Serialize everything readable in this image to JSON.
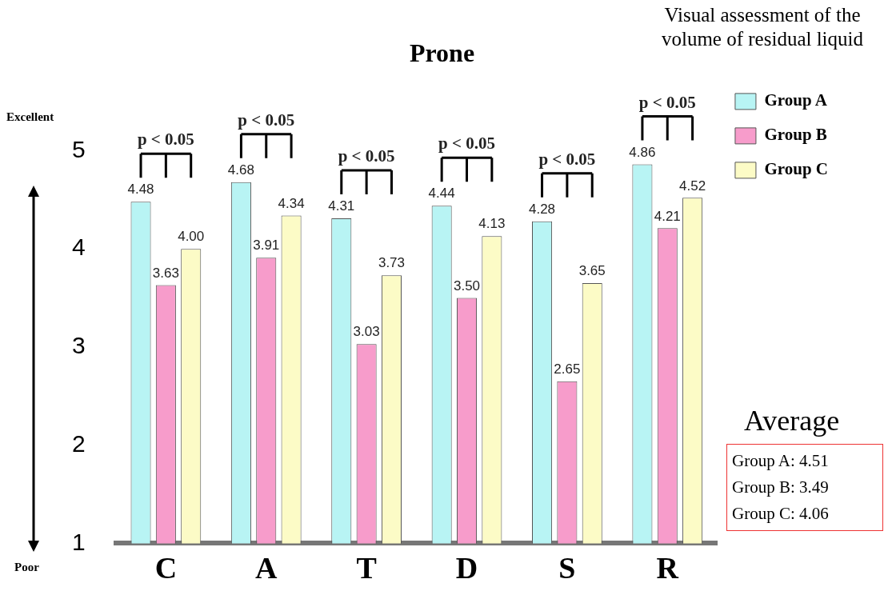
{
  "chart_data": {
    "type": "bar",
    "title": "Prone",
    "subtitle": "Visual assessment of the volume of residual liquid",
    "categories": [
      "C",
      "A",
      "T",
      "D",
      "S",
      "R"
    ],
    "series": [
      {
        "name": "Group A",
        "color": "#b8f4f4",
        "values": [
          4.48,
          4.68,
          4.31,
          4.44,
          4.28,
          4.86
        ],
        "value_labels": [
          "4.48",
          "4.68",
          "4.31",
          "4.44",
          "4.28",
          "4.86"
        ]
      },
      {
        "name": "Group B",
        "color": "#f79ccb",
        "values": [
          3.63,
          3.91,
          3.03,
          3.5,
          2.65,
          4.21
        ],
        "value_labels": [
          "3.63",
          "3.91",
          "3.03",
          "3.50",
          "2.65",
          "4.21"
        ]
      },
      {
        "name": "Group C",
        "color": "#fcfbc6",
        "values": [
          4.0,
          4.34,
          3.73,
          4.13,
          3.65,
          4.52
        ],
        "value_labels": [
          "4.00",
          "4.34",
          "3.73",
          "4.13",
          "3.65",
          "4.52"
        ]
      }
    ],
    "ylim": [
      1,
      5
    ],
    "yticks": [
      1,
      2,
      3,
      4,
      5
    ],
    "grid": false,
    "legend": "right",
    "annotations": [
      "Excellent",
      "Poor",
      "Average",
      "Group A: 4.51",
      "Group B: 3.49",
      "Group C: 4.06",
      {
        "text": "p < 0.05",
        "x": "C"
      },
      {
        "text": "p < 0.05",
        "x": "A"
      },
      {
        "text": "p < 0.05",
        "x": "T"
      },
      {
        "text": "p < 0.05",
        "x": "D"
      },
      {
        "text": "p < 0.05",
        "x": "S"
      },
      {
        "text": "p < 0.05",
        "x": "R"
      }
    ]
  }
}
